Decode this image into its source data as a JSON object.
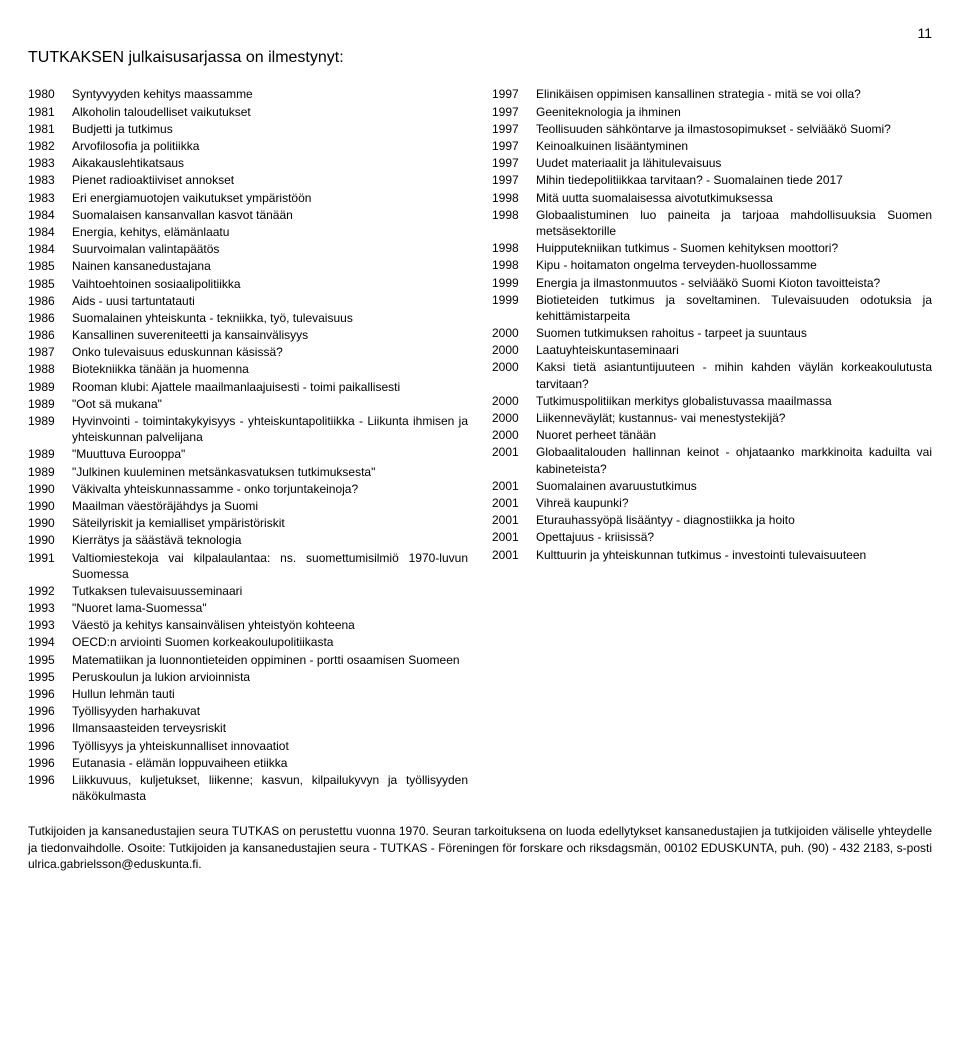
{
  "page_number": "11",
  "title": "TUTKAKSEN julkaisusarjassa on ilmestynyt:",
  "left_entries": [
    {
      "year": "1980",
      "text": "Syntyvyyden kehitys maassamme"
    },
    {
      "year": "1981",
      "text": "Alkoholin taloudelliset vaikutukset"
    },
    {
      "year": "1981",
      "text": "Budjetti ja tutkimus"
    },
    {
      "year": "1982",
      "text": "Arvofilosofia ja politiikka"
    },
    {
      "year": "1983",
      "text": "Aikakauslehtikatsaus"
    },
    {
      "year": "1983",
      "text": "Pienet radioaktiiviset annokset"
    },
    {
      "year": "1983",
      "text": "Eri energiamuotojen vaikutukset ympäristöön"
    },
    {
      "year": "1984",
      "text": "Suomalaisen kansanvallan kasvot tänään"
    },
    {
      "year": "1984",
      "text": "Energia, kehitys, elämänlaatu"
    },
    {
      "year": "1984",
      "text": "Suurvoimalan valintapäätös"
    },
    {
      "year": "1985",
      "text": "Nainen kansanedustajana"
    },
    {
      "year": "1985",
      "text": "Vaihtoehtoinen sosiaalipolitiikka"
    },
    {
      "year": "1986",
      "text": "Aids - uusi tartuntatauti"
    },
    {
      "year": "1986",
      "text": "Suomalainen yhteiskunta - tekniikka, työ, tulevaisuus"
    },
    {
      "year": "1986",
      "text": "Kansallinen suvereniteetti ja kansainvälisyys"
    },
    {
      "year": "1987",
      "text": "Onko tulevaisuus eduskunnan käsissä?"
    },
    {
      "year": "1988",
      "text": "Biotekniikka tänään ja huomenna"
    },
    {
      "year": "1989",
      "text": "Rooman klubi: Ajattele maailmanlaajuisesti - toimi paikallisesti"
    },
    {
      "year": "1989",
      "text": "\"Oot sä mukana\""
    },
    {
      "year": "1989",
      "text": "Hyvinvointi - toimintakykyisyys - yhteiskuntapolitiikka - Liikunta ihmisen ja yhteiskunnan palvelijana"
    },
    {
      "year": "1989",
      "text": "\"Muuttuva Eurooppa\""
    },
    {
      "year": "1989",
      "text": "\"Julkinen kuuleminen metsänkasvatuksen tutkimuksesta\""
    },
    {
      "year": "1990",
      "text": "Väkivalta yhteiskunnassamme - onko torjuntakeinoja?"
    },
    {
      "year": "1990",
      "text": "Maailman väestöräjähdys ja Suomi"
    },
    {
      "year": "1990",
      "text": "Säteilyriskit ja kemialliset ympäristöriskit"
    },
    {
      "year": "1990",
      "text": "Kierrätys ja säästävä teknologia"
    },
    {
      "year": "1991",
      "text": "Valtiomiestekoja vai kilpalaulantaa: ns. suomettumisilmiö 1970-luvun Suomessa"
    },
    {
      "year": "1992",
      "text": "Tutkaksen tulevaisuusseminaari"
    },
    {
      "year": "1993",
      "text": "\"Nuoret lama-Suomessa\""
    },
    {
      "year": "1993",
      "text": "Väestö ja kehitys kansainvälisen yhteistyön kohteena"
    },
    {
      "year": "1994",
      "text": "OECD:n arviointi Suomen korkeakoulupolitiikasta"
    },
    {
      "year": "1995",
      "text": "Matematiikan ja luonnontieteiden oppiminen - portti osaamisen Suomeen"
    },
    {
      "year": "1995",
      "text": "Peruskoulun ja lukion arvioinnista"
    },
    {
      "year": "1996",
      "text": "Hullun lehmän tauti"
    },
    {
      "year": "1996",
      "text": "Työllisyyden harhakuvat"
    },
    {
      "year": "1996",
      "text": "Ilmansaasteiden terveysriskit"
    },
    {
      "year": "1996",
      "text": "Työllisyys ja yhteiskunnalliset innovaatiot"
    },
    {
      "year": "1996",
      "text": "Eutanasia - elämän loppuvaiheen etiikka"
    },
    {
      "year": "1996",
      "text": "Liikkuvuus, kuljetukset, liikenne; kasvun, kilpailukyvyn ja työllisyyden näkökulmasta"
    }
  ],
  "right_entries": [
    {
      "year": "1997",
      "text": "Elinikäisen oppimisen kansallinen strategia - mitä se voi olla?"
    },
    {
      "year": "1997",
      "text": "Geeniteknologia ja ihminen"
    },
    {
      "year": "1997",
      "text": "Teollisuuden sähköntarve ja ilmastosopimukset - selviääkö Suomi?"
    },
    {
      "year": "1997",
      "text": "Keinoalkuinen lisääntyminen"
    },
    {
      "year": "1997",
      "text": "Uudet materiaalit ja lähitulevaisuus"
    },
    {
      "year": "1997",
      "text": "Mihin tiedepolitiikkaa tarvitaan? - Suomalainen tiede 2017"
    },
    {
      "year": "1998",
      "text": "Mitä uutta suomalaisessa aivotutkimuksessa"
    },
    {
      "year": "1998",
      "text": "Globaalistuminen luo paineita ja tarjoaa mahdollisuuksia Suomen metsäsektorille"
    },
    {
      "year": "1998",
      "text": "Huipputekniikan tutkimus - Suomen kehityksen moottori?"
    },
    {
      "year": "1998",
      "text": "Kipu - hoitamaton ongelma terveyden-huollossamme"
    },
    {
      "year": "1999",
      "text": "Energia ja ilmastonmuutos - selviääkö Suomi Kioton tavoitteista?"
    },
    {
      "year": "1999",
      "text": "Biotieteiden tutkimus ja soveltaminen. Tulevaisuuden odotuksia ja kehittämistarpeita"
    },
    {
      "year": "2000",
      "text": "Suomen tutkimuksen rahoitus - tarpeet ja suuntaus"
    },
    {
      "year": "2000",
      "text": "Laatuyhteiskuntaseminaari"
    },
    {
      "year": "2000",
      "text": "Kaksi tietä asiantuntijuuteen - mihin kahden väylän korkeakoulutusta tarvitaan?"
    },
    {
      "year": "2000",
      "text": "Tutkimuspolitiikan merkitys globalistuvassa maailmassa"
    },
    {
      "year": "2000",
      "text": "Liikenneväylät; kustannus- vai menestystekijä?"
    },
    {
      "year": "2000",
      "text": "Nuoret perheet tänään"
    },
    {
      "year": "2001",
      "text": "Globaalitalouden hallinnan keinot - ohjataanko markkinoita kaduilta vai kabineteista?"
    },
    {
      "year": "2001",
      "text": "Suomalainen avaruustutkimus"
    },
    {
      "year": "2001",
      "text": "Vihreä kaupunki?"
    },
    {
      "year": "2001",
      "text": "Eturauhassyöpä lisääntyy - diagnostiikka ja hoito"
    },
    {
      "year": "2001",
      "text": "Opettajuus - kriisissä?"
    },
    {
      "year": "2001",
      "text": "Kulttuurin ja yhteiskunnan tutkimus - investointi tulevaisuuteen"
    }
  ],
  "footer": "Tutkijoiden ja kansanedustajien seura TUTKAS on perustettu vuonna 1970. Seuran tarkoituksena on luoda edellytykset kansanedustajien ja tutkijoiden väliselle yhteydelle ja tiedonvaihdolle. Osoite: Tutkijoiden ja kansanedustajien seura - TUTKAS - Föreningen för forskare och riksdagsmän, 00102 EDUSKUNTA, puh. (90) - 432 2183, s-posti ulrica.gabrielsson@eduskunta.fi."
}
